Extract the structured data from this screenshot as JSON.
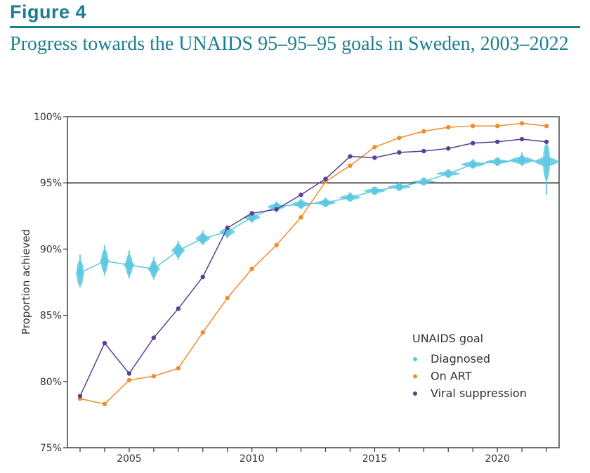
{
  "figure_label": "Figure 4",
  "chart_data": {
    "type": "line",
    "title": "Progress towards the UNAIDS 95–95–95 goals in Sweden, 2003–2022",
    "xlabel": "",
    "ylabel": "Proportion achieved",
    "x": [
      2003,
      2004,
      2005,
      2006,
      2007,
      2008,
      2009,
      2010,
      2011,
      2012,
      2013,
      2014,
      2015,
      2016,
      2017,
      2018,
      2019,
      2020,
      2021,
      2022
    ],
    "xlim": [
      2002.5,
      2022.5
    ],
    "ylim": [
      75,
      100
    ],
    "x_ticks": [
      2005,
      2010,
      2015,
      2020
    ],
    "x_tick_labels": [
      "2005",
      "2010",
      "2015",
      "2020"
    ],
    "y_ticks": [
      75,
      80,
      85,
      90,
      95,
      100
    ],
    "y_tick_labels": [
      "75%",
      "80%",
      "85%",
      "90%",
      "95%",
      "100%"
    ],
    "reference_line": 95,
    "grid": false,
    "legend": {
      "title": "UNAIDS goal",
      "position": "bottom-right"
    },
    "series": [
      {
        "name": "Diagnosed",
        "color": "#5bc8e0",
        "values": [
          88.2,
          89.1,
          88.8,
          88.5,
          89.9,
          90.8,
          91.3,
          92.4,
          93.2,
          93.4,
          93.5,
          93.9,
          94.4,
          94.7,
          95.1,
          95.7,
          96.4,
          96.6,
          96.7,
          96.6
        ],
        "lower": [
          87.1,
          88.0,
          87.8,
          87.7,
          89.2,
          90.3,
          90.8,
          92.0,
          92.8,
          93.0,
          93.2,
          93.6,
          94.1,
          94.4,
          94.9,
          95.4,
          96.1,
          96.3,
          96.3,
          94.1
        ],
        "upper": [
          89.6,
          90.3,
          89.9,
          89.4,
          90.6,
          91.4,
          91.8,
          92.9,
          93.6,
          93.8,
          93.9,
          94.3,
          94.7,
          95.0,
          95.3,
          96.0,
          96.8,
          96.9,
          97.3,
          97.7
        ]
      },
      {
        "name": "On ART",
        "color": "#ee8e2c",
        "values": [
          78.7,
          78.3,
          80.1,
          80.4,
          81.0,
          83.7,
          86.3,
          88.5,
          90.3,
          92.4,
          95.1,
          96.3,
          97.7,
          98.4,
          98.9,
          99.2,
          99.3,
          99.3,
          99.5,
          99.3
        ]
      },
      {
        "name": "Viral suppression",
        "color": "#5b3f95",
        "values": [
          78.9,
          82.9,
          80.6,
          83.3,
          85.5,
          87.9,
          91.6,
          92.7,
          93.0,
          94.1,
          95.3,
          97.0,
          96.9,
          97.3,
          97.4,
          97.6,
          98.0,
          98.1,
          98.3,
          98.1
        ]
      }
    ]
  }
}
